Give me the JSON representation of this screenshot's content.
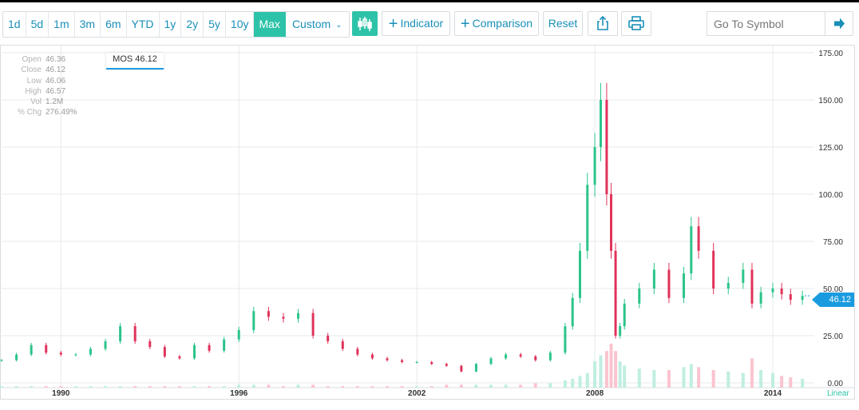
{
  "toolbar": {
    "ranges": [
      "1d",
      "5d",
      "1m",
      "3m",
      "6m",
      "YTD",
      "1y",
      "2y",
      "5y",
      "10y",
      "Max"
    ],
    "active_range": "Max",
    "custom_label": "Custom",
    "indicator_label": "Indicator",
    "comparison_label": "Comparison",
    "reset_label": "Reset",
    "symbol_placeholder": "Go To Symbol"
  },
  "hud": {
    "labels": [
      "Open",
      "Close",
      "Low",
      "High",
      "Vol",
      "% Chg"
    ],
    "values": [
      "46.36",
      "46.12",
      "46.06",
      "46.57",
      "1.2M",
      "276.49%"
    ]
  },
  "series_tag": "MOS 46.12",
  "last_price": "46.12",
  "scale_mode": "Linear",
  "colors": {
    "up": "#2bc48a",
    "down": "#e0325a",
    "accent": "#2dc3a8",
    "link": "#1a8fb8",
    "flag": "#1a9be0"
  },
  "chart_data": {
    "type": "candlestick",
    "symbol": "MOS",
    "y_ticks": [
      "175.00",
      "150.00",
      "125.00",
      "100.00",
      "75.00",
      "50.00",
      "25.00",
      "0.00"
    ],
    "ylim": [
      0,
      175
    ],
    "x_ticks": [
      "1990",
      "1996",
      "2002",
      "2008",
      "2014"
    ],
    "xlim": [
      1988.0,
      2015.4
    ],
    "series": [
      {
        "name": "MOS",
        "x": [
          1988.0,
          1988.5,
          1989.0,
          1989.5,
          1990.0,
          1990.5,
          1991.0,
          1991.5,
          1992.0,
          1992.5,
          1993.0,
          1993.5,
          1994.0,
          1994.5,
          1995.0,
          1995.5,
          1996.0,
          1996.5,
          1997.0,
          1997.5,
          1998.0,
          1998.5,
          1999.0,
          1999.5,
          2000.0,
          2000.5,
          2001.0,
          2001.5,
          2002.0,
          2002.5,
          2003.0,
          2003.5,
          2004.0,
          2004.5,
          2005.0,
          2005.5,
          2006.0,
          2006.5,
          2007.0,
          2007.25,
          2007.5,
          2007.75,
          2008.0,
          2008.2,
          2008.4,
          2008.55,
          2008.7,
          2008.85,
          2009.0,
          2009.5,
          2010.0,
          2010.5,
          2011.0,
          2011.25,
          2011.5,
          2012.0,
          2012.5,
          2013.0,
          2013.3,
          2013.6,
          2014.0,
          2014.3,
          2014.6,
          2015.0
        ],
        "close": [
          12,
          15,
          20,
          16,
          15,
          15,
          18,
          22,
          30,
          22,
          19,
          14,
          13,
          20,
          17,
          23,
          28,
          38,
          35,
          34,
          37,
          25,
          22,
          18,
          15,
          13,
          12,
          11,
          11,
          10,
          9,
          6,
          10,
          13,
          15,
          14,
          12,
          16,
          30,
          45,
          70,
          105,
          125,
          150,
          100,
          70,
          25,
          30,
          42,
          50,
          60,
          45,
          58,
          83,
          70,
          50,
          53,
          60,
          42,
          48,
          50,
          47,
          44,
          46.12
        ],
        "volume": [
          1,
          1,
          1,
          1,
          1,
          1,
          1,
          1,
          1,
          1,
          1,
          1,
          1,
          1,
          1,
          1,
          2,
          2,
          2,
          1,
          2,
          2,
          1,
          1,
          1,
          1,
          1,
          1,
          1,
          1,
          2,
          2,
          2,
          2,
          2,
          2,
          3,
          3,
          5,
          6,
          8,
          10,
          18,
          22,
          25,
          30,
          25,
          18,
          15,
          13,
          12,
          12,
          14,
          16,
          14,
          12,
          11,
          10,
          20,
          12,
          10,
          8,
          7,
          6
        ]
      }
    ]
  }
}
